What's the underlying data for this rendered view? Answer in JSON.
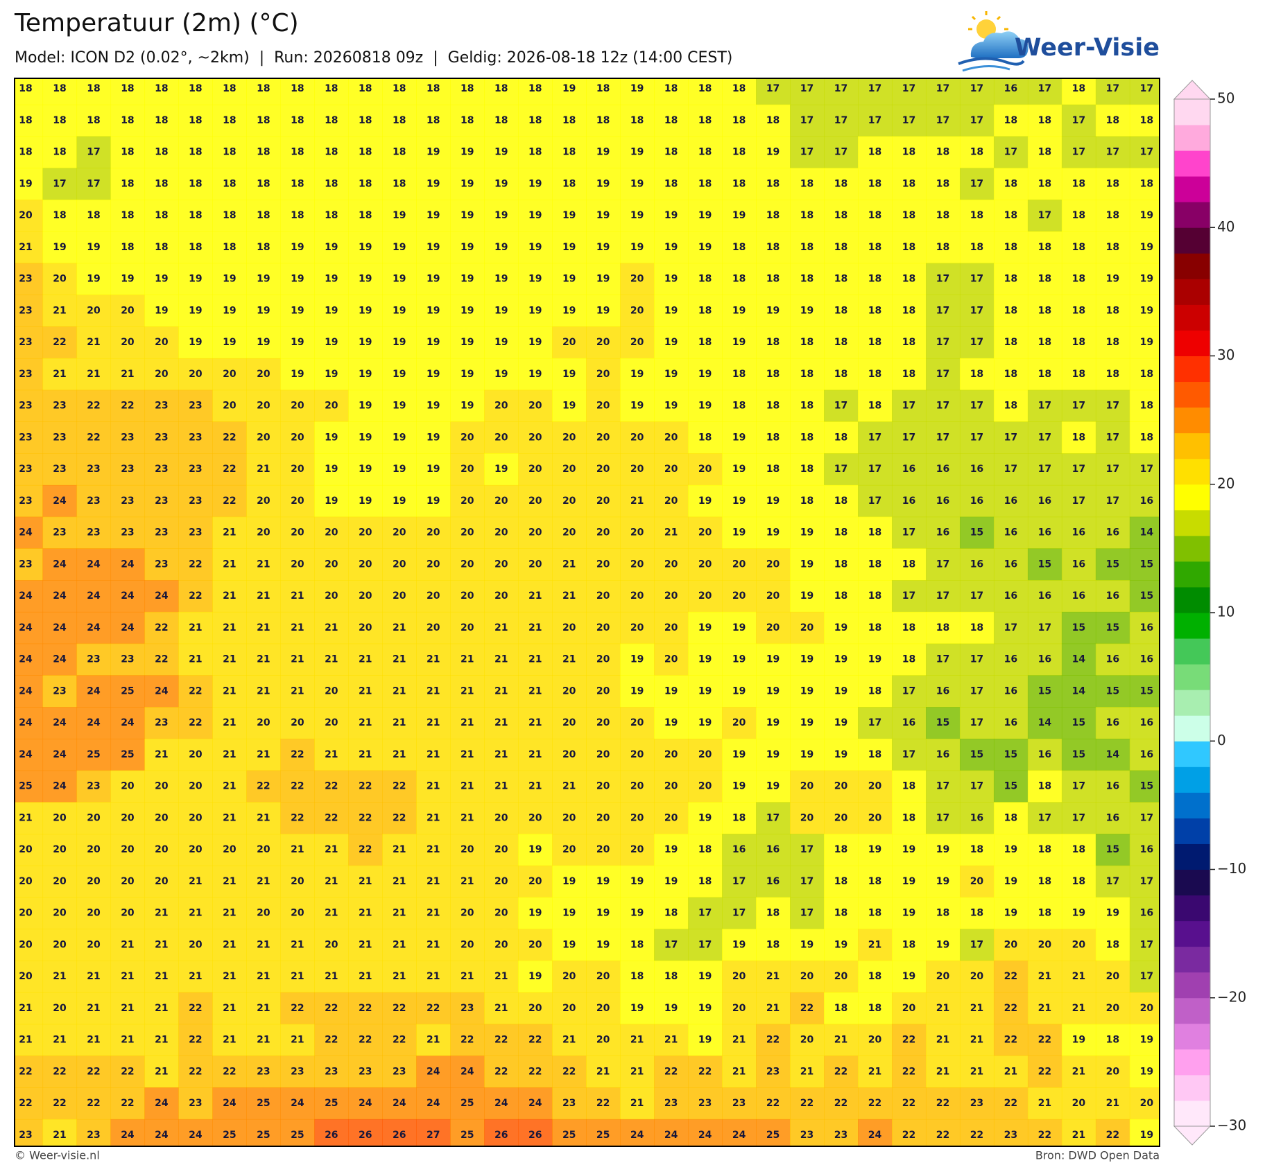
{
  "header": {
    "title": "Temperatuur (2m) (°C)",
    "subtitle": "Model: ICON D2 (0.02°, ~2km)  |  Run: 20260818 09z  |  Geldig: 2026-08-18 12z (14:00 CEST)"
  },
  "logo": {
    "text": "Weer-Visie"
  },
  "grid": {
    "rows": [
      [
        18,
        18,
        18,
        18,
        18,
        18,
        18,
        18,
        18,
        18,
        18,
        18,
        18,
        18,
        18,
        18,
        19,
        18,
        19,
        18,
        18,
        18,
        17,
        17,
        17,
        17,
        17,
        17,
        17,
        16,
        17,
        18,
        17,
        17
      ],
      [
        18,
        18,
        18,
        18,
        18,
        18,
        18,
        18,
        18,
        18,
        18,
        18,
        18,
        18,
        18,
        18,
        18,
        18,
        18,
        18,
        18,
        18,
        18,
        17,
        17,
        17,
        17,
        17,
        17,
        18,
        18,
        17,
        18,
        18
      ],
      [
        18,
        18,
        17,
        18,
        18,
        18,
        18,
        18,
        18,
        18,
        18,
        18,
        19,
        19,
        19,
        18,
        18,
        19,
        19,
        18,
        18,
        18,
        19,
        17,
        17,
        18,
        18,
        18,
        18,
        17,
        18,
        17,
        17,
        17
      ],
      [
        19,
        17,
        17,
        18,
        18,
        18,
        18,
        18,
        18,
        18,
        18,
        18,
        19,
        19,
        19,
        19,
        18,
        19,
        19,
        18,
        18,
        18,
        18,
        18,
        18,
        18,
        18,
        18,
        17,
        18,
        18,
        18,
        18,
        18
      ],
      [
        20,
        18,
        18,
        18,
        18,
        18,
        18,
        18,
        18,
        18,
        18,
        19,
        19,
        19,
        19,
        19,
        19,
        19,
        19,
        19,
        19,
        19,
        18,
        18,
        18,
        18,
        18,
        18,
        18,
        18,
        17,
        18,
        18,
        19
      ],
      [
        21,
        19,
        19,
        18,
        18,
        18,
        18,
        18,
        19,
        19,
        19,
        19,
        19,
        19,
        19,
        19,
        19,
        19,
        19,
        19,
        19,
        18,
        18,
        18,
        18,
        18,
        18,
        18,
        18,
        18,
        18,
        18,
        18,
        19
      ],
      [
        23,
        20,
        19,
        19,
        19,
        19,
        19,
        19,
        19,
        19,
        19,
        19,
        19,
        19,
        19,
        19,
        19,
        19,
        20,
        19,
        18,
        18,
        18,
        18,
        18,
        18,
        18,
        17,
        17,
        18,
        18,
        18,
        19,
        19
      ],
      [
        23,
        21,
        20,
        20,
        19,
        19,
        19,
        19,
        19,
        19,
        19,
        19,
        19,
        19,
        19,
        19,
        19,
        19,
        20,
        19,
        18,
        19,
        19,
        19,
        18,
        18,
        18,
        17,
        17,
        18,
        18,
        18,
        18,
        19
      ],
      [
        23,
        22,
        21,
        20,
        20,
        19,
        19,
        19,
        19,
        19,
        19,
        19,
        19,
        19,
        19,
        19,
        20,
        20,
        20,
        19,
        18,
        19,
        18,
        18,
        18,
        18,
        18,
        17,
        17,
        18,
        18,
        18,
        18,
        19
      ],
      [
        23,
        21,
        21,
        21,
        20,
        20,
        20,
        20,
        19,
        19,
        19,
        19,
        19,
        19,
        19,
        19,
        19,
        20,
        19,
        19,
        19,
        18,
        18,
        18,
        18,
        18,
        18,
        17,
        18,
        18,
        18,
        18,
        18,
        18
      ],
      [
        23,
        23,
        22,
        22,
        23,
        23,
        20,
        20,
        20,
        20,
        19,
        19,
        19,
        19,
        20,
        20,
        19,
        20,
        19,
        19,
        19,
        18,
        18,
        18,
        17,
        18,
        17,
        17,
        17,
        18,
        17,
        17,
        17,
        18
      ],
      [
        23,
        23,
        22,
        23,
        23,
        23,
        22,
        20,
        20,
        19,
        19,
        19,
        19,
        20,
        20,
        20,
        20,
        20,
        20,
        20,
        18,
        19,
        18,
        18,
        18,
        17,
        17,
        17,
        17,
        17,
        17,
        18,
        17,
        18
      ],
      [
        23,
        23,
        23,
        23,
        23,
        23,
        22,
        21,
        20,
        19,
        19,
        19,
        19,
        20,
        19,
        20,
        20,
        20,
        20,
        20,
        20,
        19,
        18,
        18,
        17,
        17,
        16,
        16,
        16,
        17,
        17,
        17,
        17,
        17
      ],
      [
        23,
        24,
        23,
        23,
        23,
        23,
        22,
        20,
        20,
        19,
        19,
        19,
        19,
        20,
        20,
        20,
        20,
        20,
        21,
        20,
        19,
        19,
        19,
        18,
        18,
        17,
        16,
        16,
        16,
        16,
        16,
        17,
        17,
        16
      ],
      [
        24,
        23,
        23,
        23,
        23,
        23,
        21,
        20,
        20,
        20,
        20,
        20,
        20,
        20,
        20,
        20,
        20,
        20,
        20,
        21,
        20,
        19,
        19,
        19,
        18,
        18,
        17,
        16,
        15,
        16,
        16,
        16,
        16,
        14
      ],
      [
        23,
        24,
        24,
        24,
        23,
        22,
        21,
        21,
        20,
        20,
        20,
        20,
        20,
        20,
        20,
        20,
        21,
        20,
        20,
        20,
        20,
        20,
        20,
        19,
        18,
        18,
        18,
        17,
        16,
        16,
        15,
        16,
        15,
        15
      ],
      [
        24,
        24,
        24,
        24,
        24,
        22,
        21,
        21,
        21,
        20,
        20,
        20,
        20,
        20,
        20,
        21,
        21,
        20,
        20,
        20,
        20,
        20,
        20,
        19,
        18,
        18,
        17,
        17,
        17,
        16,
        16,
        16,
        16,
        15
      ],
      [
        24,
        24,
        24,
        24,
        22,
        21,
        21,
        21,
        21,
        21,
        20,
        21,
        20,
        20,
        21,
        21,
        20,
        20,
        20,
        20,
        19,
        19,
        20,
        20,
        19,
        18,
        18,
        18,
        18,
        17,
        17,
        15,
        15,
        16
      ],
      [
        24,
        24,
        23,
        23,
        22,
        21,
        21,
        21,
        21,
        21,
        21,
        21,
        21,
        21,
        21,
        21,
        21,
        20,
        19,
        20,
        19,
        19,
        19,
        19,
        19,
        19,
        18,
        17,
        17,
        16,
        16,
        14,
        16,
        16
      ],
      [
        24,
        23,
        24,
        25,
        24,
        22,
        21,
        21,
        21,
        20,
        21,
        21,
        21,
        21,
        21,
        21,
        20,
        20,
        19,
        19,
        19,
        19,
        19,
        19,
        19,
        18,
        17,
        16,
        17,
        16,
        15,
        14,
        15,
        15
      ],
      [
        24,
        24,
        24,
        24,
        23,
        22,
        21,
        20,
        20,
        20,
        21,
        21,
        21,
        21,
        21,
        21,
        20,
        20,
        20,
        19,
        19,
        20,
        19,
        19,
        19,
        17,
        16,
        15,
        17,
        16,
        14,
        15,
        16,
        16
      ],
      [
        24,
        24,
        25,
        25,
        21,
        20,
        21,
        21,
        22,
        21,
        21,
        21,
        21,
        21,
        21,
        21,
        20,
        20,
        20,
        20,
        20,
        19,
        19,
        19,
        19,
        18,
        17,
        16,
        15,
        15,
        16,
        15,
        14,
        16
      ],
      [
        25,
        24,
        23,
        20,
        20,
        20,
        21,
        22,
        22,
        22,
        22,
        22,
        21,
        21,
        21,
        21,
        21,
        20,
        20,
        20,
        20,
        19,
        19,
        20,
        20,
        20,
        18,
        17,
        17,
        15,
        18,
        17,
        16,
        15
      ],
      [
        21,
        20,
        20,
        20,
        20,
        20,
        21,
        21,
        22,
        22,
        22,
        22,
        21,
        21,
        20,
        20,
        20,
        20,
        20,
        20,
        19,
        18,
        17,
        20,
        20,
        20,
        18,
        17,
        16,
        18,
        17,
        17,
        16,
        17
      ],
      [
        20,
        20,
        20,
        20,
        20,
        20,
        20,
        20,
        21,
        21,
        22,
        21,
        21,
        20,
        20,
        19,
        20,
        20,
        20,
        19,
        18,
        16,
        16,
        17,
        18,
        19,
        19,
        19,
        18,
        19,
        18,
        18,
        15,
        16
      ],
      [
        20,
        20,
        20,
        20,
        20,
        21,
        21,
        21,
        20,
        21,
        21,
        21,
        21,
        21,
        20,
        20,
        19,
        19,
        19,
        19,
        18,
        17,
        16,
        17,
        18,
        18,
        19,
        19,
        20,
        19,
        18,
        18,
        17,
        17
      ],
      [
        20,
        20,
        20,
        20,
        21,
        21,
        21,
        20,
        20,
        21,
        21,
        21,
        21,
        20,
        20,
        19,
        19,
        19,
        19,
        18,
        17,
        17,
        18,
        17,
        18,
        18,
        19,
        18,
        18,
        19,
        18,
        19,
        19,
        16
      ],
      [
        20,
        20,
        20,
        21,
        21,
        20,
        21,
        21,
        21,
        20,
        21,
        21,
        21,
        20,
        20,
        20,
        19,
        19,
        18,
        17,
        17,
        19,
        18,
        19,
        19,
        21,
        18,
        19,
        17,
        20,
        20,
        20,
        18,
        17
      ],
      [
        20,
        21,
        21,
        21,
        21,
        21,
        21,
        21,
        21,
        21,
        21,
        21,
        21,
        21,
        21,
        19,
        20,
        20,
        18,
        18,
        19,
        20,
        21,
        20,
        20,
        18,
        19,
        20,
        20,
        22,
        21,
        21,
        20,
        17
      ],
      [
        21,
        20,
        21,
        21,
        21,
        22,
        21,
        21,
        22,
        22,
        22,
        22,
        22,
        23,
        21,
        20,
        20,
        20,
        19,
        19,
        19,
        20,
        21,
        22,
        18,
        18,
        20,
        21,
        21,
        22,
        21,
        21,
        20,
        20
      ],
      [
        21,
        21,
        21,
        21,
        21,
        22,
        21,
        21,
        21,
        22,
        22,
        22,
        21,
        22,
        22,
        22,
        21,
        20,
        21,
        21,
        19,
        21,
        22,
        20,
        21,
        20,
        22,
        21,
        21,
        22,
        22,
        19,
        18,
        19
      ],
      [
        22,
        22,
        22,
        22,
        21,
        22,
        22,
        23,
        23,
        23,
        23,
        23,
        24,
        24,
        22,
        22,
        22,
        21,
        21,
        22,
        22,
        21,
        23,
        21,
        22,
        21,
        22,
        21,
        21,
        21,
        22,
        21,
        20,
        19
      ],
      [
        22,
        22,
        22,
        22,
        24,
        23,
        24,
        25,
        24,
        25,
        24,
        24,
        24,
        25,
        24,
        24,
        23,
        22,
        21,
        23,
        23,
        23,
        22,
        22,
        22,
        22,
        22,
        22,
        23,
        22,
        21,
        20,
        21,
        20
      ],
      [
        23,
        21,
        23,
        24,
        24,
        24,
        25,
        25,
        25,
        26,
        26,
        26,
        27,
        25,
        26,
        26,
        25,
        25,
        24,
        24,
        24,
        24,
        25,
        23,
        23,
        24,
        22,
        22,
        22,
        23,
        22,
        21,
        22,
        19
      ]
    ]
  },
  "colorbar": {
    "lim": [
      -30,
      50
    ],
    "ticks": [
      {
        "value": -30,
        "label": "−30"
      },
      {
        "value": -20,
        "label": "−20"
      },
      {
        "value": -10,
        "label": "−10"
      },
      0,
      10,
      20,
      30,
      40,
      50
    ],
    "colors": [
      "#ffe8fa",
      "#ffc8f4",
      "#ffa0ee",
      "#e080e0",
      "#c060c8",
      "#a040b0",
      "#7a2aa0",
      "#58108e",
      "#3a0870",
      "#1a0a50",
      "#001a70",
      "#0040a8",
      "#0070cc",
      "#00a0e6",
      "#30c8ff",
      "#ccffe8",
      "#a8eeb0",
      "#78dc78",
      "#44c858",
      "#00b000",
      "#008c00",
      "#30a800",
      "#80c000",
      "#c8dc00",
      "#ffff00",
      "#ffe000",
      "#ffc000",
      "#ff8c00",
      "#ff5a00",
      "#ff3000",
      "#ee0000",
      "#cc0000",
      "#aa0000",
      "#880000",
      "#550033",
      "#880066",
      "#cc0099",
      "#ff44cc",
      "#ffaadd",
      "#ffd8f0"
    ]
  },
  "footer": {
    "left": "© Weer-visie.nl",
    "right": "Bron: DWD Open Data"
  }
}
